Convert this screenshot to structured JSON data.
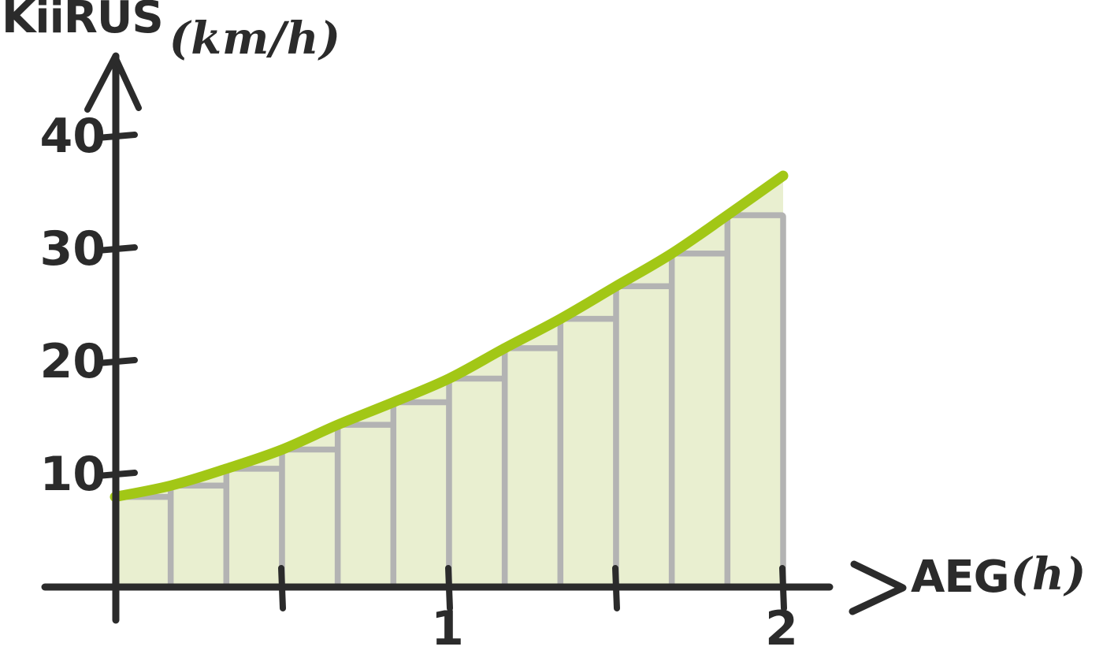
{
  "labels": {
    "y_axis_name": "KiiRUS",
    "y_axis_unit": "(km/h)",
    "x_axis_name": "AEG",
    "x_axis_unit": "(h)"
  },
  "chart_data": {
    "type": "bar",
    "subtype": "left-endpoint Riemann sum rectangles under an increasing speed-time curve",
    "title": "",
    "xlabel": "AEG (h)",
    "ylabel": "KIIRUS (km/h)",
    "xlim": [
      0,
      2.35
    ],
    "ylim": [
      0,
      47
    ],
    "grid": false,
    "legend": null,
    "bar_width": 0.1667,
    "bars": {
      "x_left": [
        0,
        0.1667,
        0.3333,
        0.5,
        0.6667,
        0.8333,
        1,
        1.1667,
        1.3333,
        1.5,
        1.6667,
        1.8333
      ],
      "heights": [
        8,
        9,
        10.5,
        12.2,
        14.4,
        16.4,
        18.5,
        21.2,
        23.8,
        26.7,
        29.6,
        33
      ]
    },
    "curve": {
      "name": "speed-curve",
      "x": [
        0,
        0.1667,
        0.3333,
        0.5,
        0.6667,
        0.8333,
        1,
        1.1667,
        1.3333,
        1.5,
        1.6667,
        1.8333,
        2
      ],
      "y": [
        8,
        9,
        10.5,
        12.2,
        14.4,
        16.4,
        18.5,
        21.2,
        23.8,
        26.7,
        29.6,
        33,
        36.5
      ]
    },
    "xticks": [
      {
        "value": 0.5,
        "label": ""
      },
      {
        "value": 1,
        "label": "1"
      },
      {
        "value": 1.5,
        "label": ""
      },
      {
        "value": 2,
        "label": "2"
      }
    ],
    "yticks": [
      {
        "value": 10,
        "label": "10"
      },
      {
        "value": 20,
        "label": "20"
      },
      {
        "value": 30,
        "label": "30"
      },
      {
        "value": 40,
        "label": "40"
      }
    ],
    "colors": {
      "curve": "#a2c716",
      "area_fill": "#e9efd0",
      "bar_fill": "#e9efd0",
      "bar_stroke": "#b3b3b3",
      "axis": "#2b2b2b"
    }
  }
}
